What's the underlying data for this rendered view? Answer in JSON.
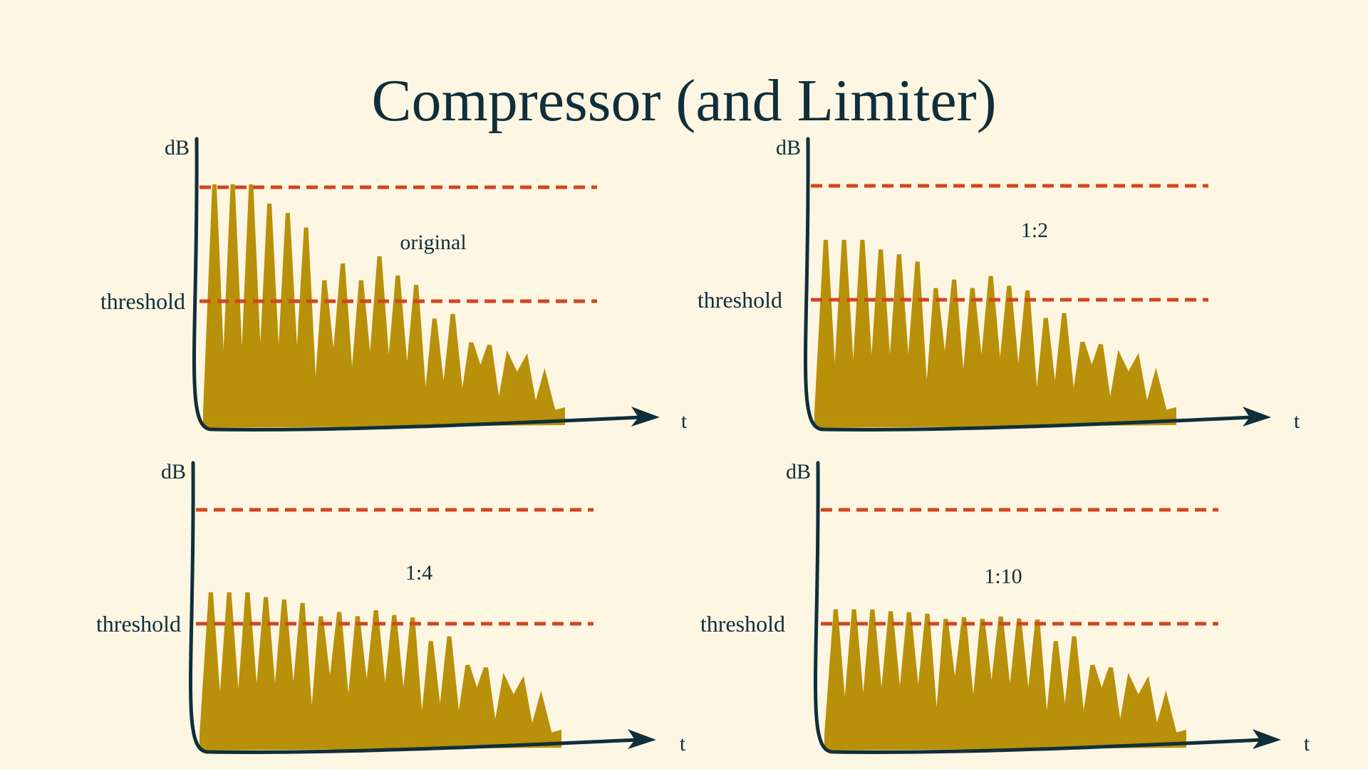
{
  "slide": {
    "title": "Compressor (and Limiter)"
  },
  "colors": {
    "background": "#fdf6e3",
    "ink": "#0f2f3a",
    "waveform": "#b8900a",
    "threshold_line": "#d2461e"
  },
  "axes": {
    "y_label": "dB",
    "x_label": "t",
    "threshold_label": "threshold"
  },
  "panels": [
    {
      "id": "original",
      "caption": "original",
      "ratio": 1
    },
    {
      "id": "ratio-1-2",
      "caption": "1:2",
      "ratio": 2
    },
    {
      "id": "ratio-1-4",
      "caption": "1:4",
      "ratio": 4
    },
    {
      "id": "ratio-1-10",
      "caption": "1:10",
      "ratio": 10
    }
  ],
  "waveform": {
    "levels_db_relative": [
      0.05,
      1.0,
      0.1,
      1.0,
      0.12,
      1.0,
      0.15,
      0.92,
      0.16,
      0.88,
      0.17,
      0.82,
      0.05,
      0.6,
      0.22,
      0.67,
      0.12,
      0.6,
      0.2,
      0.7,
      0.18,
      0.62,
      0.16,
      0.58,
      0.05,
      0.44,
      0.1,
      0.46,
      0.08,
      0.34,
      0.22,
      0.33,
      0.06,
      0.28,
      0.2,
      0.27,
      0.06,
      0.2,
      0.05,
      0.06
    ],
    "threshold_relative": 0.53
  }
}
